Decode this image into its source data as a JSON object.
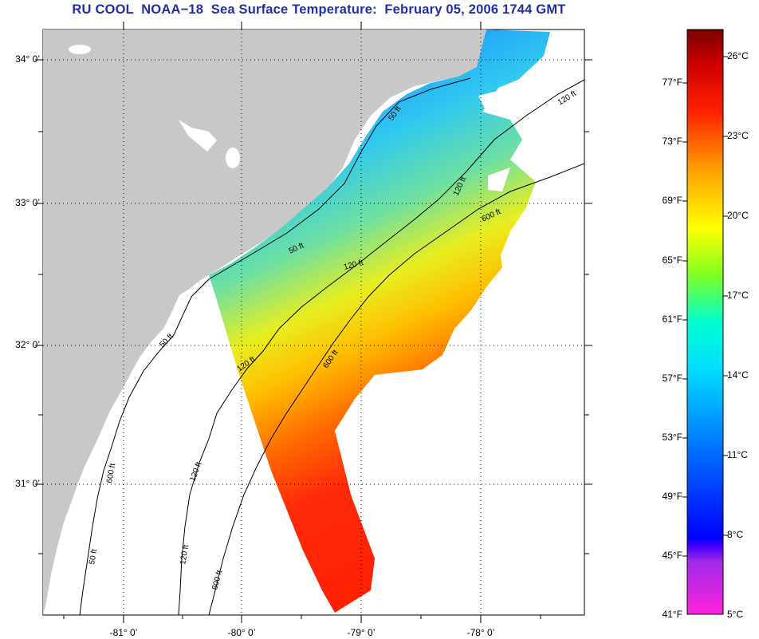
{
  "title": {
    "institution": "RU COOL",
    "satellite": "NOAA−18",
    "product": "Sea Surface Temperature:",
    "date_time": "February 05, 2006 1744 GMT"
  },
  "map": {
    "latitude_labels": [
      "34° 0’",
      "33° 0’",
      "32° 0’",
      "31° 0’"
    ],
    "longitude_labels": [
      "-81° 0’",
      "-80° 0’",
      "-79° 0’",
      "-78° 0’"
    ],
    "land_color": "#c8c8c8",
    "no_data_color": "#ffffff",
    "contour_labels": [
      "120 ft",
      "600 ft",
      "50 ft",
      "120 ft",
      "600 ft",
      "120 ft",
      "50 ft",
      "120 ft",
      "600 ft",
      "50 ft",
      "120 ft",
      "600 ft",
      "50 ft",
      "120 ft"
    ]
  },
  "colorbar": {
    "fahrenheit_labels": [
      "77°F",
      "73°F",
      "69°F",
      "65°F",
      "61°F",
      "57°F",
      "53°F",
      "49°F",
      "45°F",
      "41°F"
    ],
    "celsius_labels": [
      "26°C",
      "23°C",
      "20°C",
      "17°C",
      "14°C",
      "11°C",
      "8°C",
      "5°C"
    ],
    "colors": [
      "#8b0000",
      "#ff0000",
      "#ff8c00",
      "#ffff00",
      "#7fff00",
      "#00ffff",
      "#0080ff",
      "#0000ff",
      "#8000ff",
      "#ff00ff"
    ]
  }
}
